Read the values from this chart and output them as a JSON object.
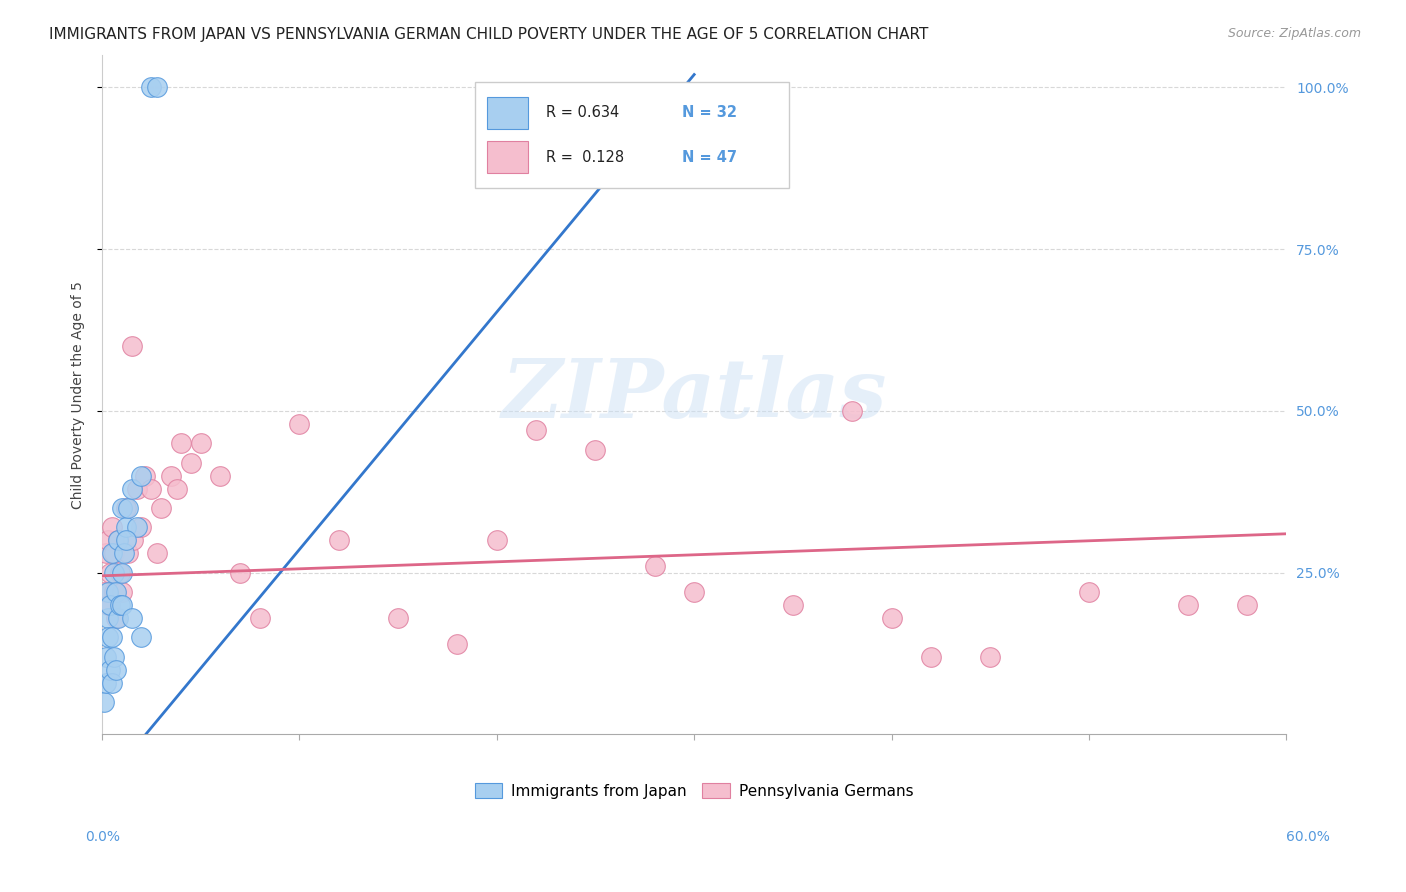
{
  "title": "IMMIGRANTS FROM JAPAN VS PENNSYLVANIA GERMAN CHILD POVERTY UNDER THE AGE OF 5 CORRELATION CHART",
  "source": "Source: ZipAtlas.com",
  "ylabel": "Child Poverty Under the Age of 5",
  "xlim": [
    0.0,
    0.6
  ],
  "ylim": [
    0.0,
    1.05
  ],
  "watermark": "ZIPatlas",
  "legend_r1": "R = 0.634",
  "legend_n1": "N = 32",
  "legend_r2": "R = 0.128",
  "legend_n2": "N = 47",
  "blue_color": "#a8cff0",
  "blue_edge": "#5599dd",
  "blue_line_color": "#3377cc",
  "pink_color": "#f5bece",
  "pink_edge": "#e080a0",
  "pink_line_color": "#dd6688",
  "blue_scatter_x": [
    0.001,
    0.002,
    0.002,
    0.003,
    0.003,
    0.003,
    0.004,
    0.004,
    0.005,
    0.005,
    0.005,
    0.006,
    0.006,
    0.007,
    0.007,
    0.008,
    0.008,
    0.009,
    0.01,
    0.01,
    0.011,
    0.012,
    0.013,
    0.015,
    0.018,
    0.02,
    0.025,
    0.028,
    0.01,
    0.012,
    0.015,
    0.02
  ],
  "blue_scatter_y": [
    0.05,
    0.08,
    0.12,
    0.18,
    0.15,
    0.22,
    0.1,
    0.2,
    0.08,
    0.15,
    0.28,
    0.12,
    0.25,
    0.1,
    0.22,
    0.18,
    0.3,
    0.2,
    0.25,
    0.35,
    0.28,
    0.32,
    0.35,
    0.38,
    0.32,
    0.4,
    1.0,
    1.0,
    0.2,
    0.3,
    0.18,
    0.15
  ],
  "pink_scatter_x": [
    0.001,
    0.002,
    0.003,
    0.003,
    0.004,
    0.005,
    0.006,
    0.006,
    0.007,
    0.008,
    0.009,
    0.01,
    0.012,
    0.013,
    0.015,
    0.016,
    0.018,
    0.02,
    0.022,
    0.025,
    0.028,
    0.03,
    0.035,
    0.038,
    0.04,
    0.045,
    0.05,
    0.06,
    0.07,
    0.08,
    0.1,
    0.12,
    0.15,
    0.18,
    0.2,
    0.22,
    0.25,
    0.28,
    0.3,
    0.35,
    0.38,
    0.4,
    0.42,
    0.45,
    0.5,
    0.55,
    0.58
  ],
  "pink_scatter_y": [
    0.22,
    0.28,
    0.2,
    0.3,
    0.25,
    0.32,
    0.22,
    0.28,
    0.18,
    0.3,
    0.25,
    0.22,
    0.35,
    0.28,
    0.6,
    0.3,
    0.38,
    0.32,
    0.4,
    0.38,
    0.28,
    0.35,
    0.4,
    0.38,
    0.45,
    0.42,
    0.45,
    0.4,
    0.25,
    0.18,
    0.48,
    0.3,
    0.18,
    0.14,
    0.3,
    0.47,
    0.44,
    0.26,
    0.22,
    0.2,
    0.5,
    0.18,
    0.12,
    0.12,
    0.22,
    0.2,
    0.2
  ],
  "blue_line_x": [
    -0.005,
    0.3
  ],
  "blue_line_y": [
    -0.1,
    1.02
  ],
  "pink_line_x": [
    0.0,
    0.6
  ],
  "pink_line_y": [
    0.245,
    0.31
  ],
  "background_color": "#ffffff",
  "grid_color": "#d8d8d8",
  "title_fontsize": 11,
  "label_fontsize": 10,
  "tick_fontsize": 10,
  "right_tick_color": "#5599dd"
}
